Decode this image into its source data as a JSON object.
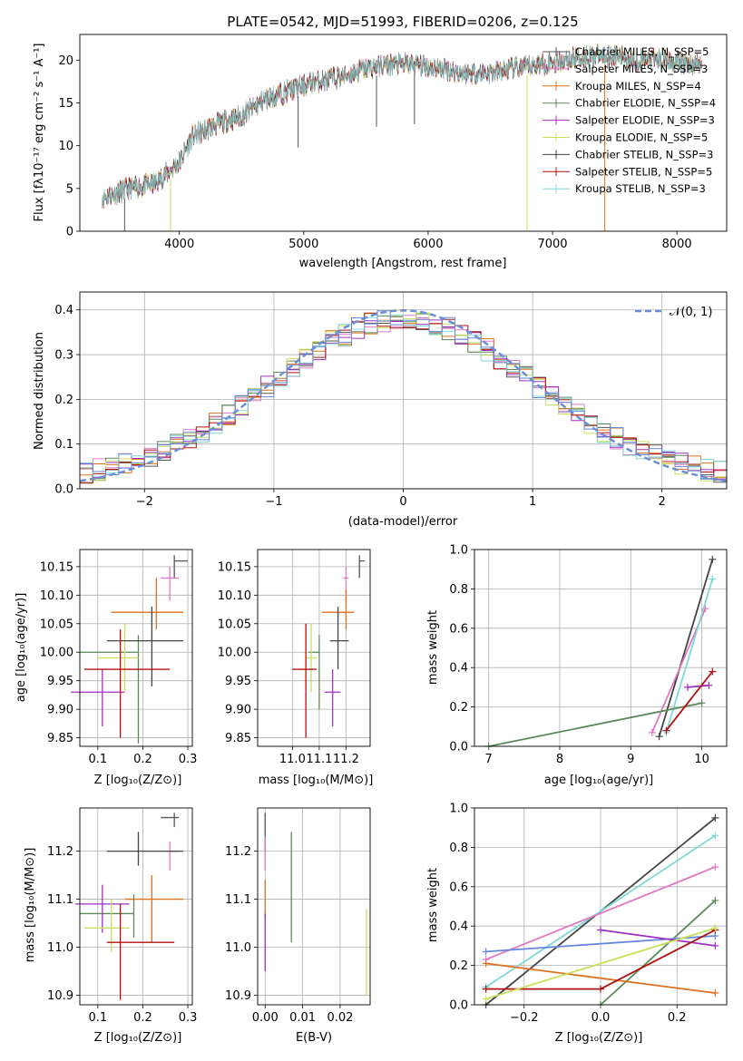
{
  "spectrum": {
    "title": "PLATE=0542, MJD=51993, FIBERID=0206, z=0.125",
    "xlabel": "wavelength [Angstrom, rest frame]",
    "ylabel": "Flux [fλ10⁻¹⁷ erg cm⁻² s⁻¹ A⁻¹]",
    "xticks": [
      "4000",
      "5000",
      "6000",
      "7000",
      "8000"
    ],
    "yticks": [
      "0",
      "5",
      "10",
      "15",
      "20"
    ],
    "legend": [
      "Chabrier MILES, N_SSP=5",
      "Salpeter MILES, N_SSP=3",
      "Kroupa MILES, N_SSP=4",
      "Chabrier ELODIE, N_SSP=4",
      "Salpeter ELODIE, N_SSP=3",
      "Kroupa ELODIE, N_SSP=5",
      "Chabrier STELIB, N_SSP=3",
      "Salpeter STELIB, N_SSP=5",
      "Kroupa STELIB, N_SSP=3"
    ]
  },
  "histogram": {
    "xlabel": "(data-model)/error",
    "ylabel": "Normed distribution",
    "xticks": [
      "−2",
      "−1",
      "0",
      "1",
      "2"
    ],
    "yticks": [
      "0.0",
      "0.1",
      "0.2",
      "0.3",
      "0.4"
    ],
    "legend": "𝒩(0, 1)"
  },
  "scatter": {
    "age_Z": {
      "xlabel": "Z [log₁₀(Z/Z⊙)]",
      "ylabel": "age  [log₁₀(age/yr)]",
      "xticks": [
        "0.1",
        "0.2",
        "0.3"
      ],
      "yticks": [
        "9.85",
        "9.90",
        "9.95",
        "10.00",
        "10.05",
        "10.10",
        "10.15"
      ]
    },
    "age_mass": {
      "xlabel": "mass [log₁₀(M/M⊙)]",
      "xticks": [
        "11.0",
        "11.1",
        "11.2"
      ],
      "yticks": [
        "9.85",
        "9.90",
        "9.95",
        "10.00",
        "10.05",
        "10.10",
        "10.15"
      ]
    },
    "mw_age": {
      "xlabel": "age  [log₁₀(age/yr)]",
      "ylabel": "mass weight",
      "xticks": [
        "7",
        "8",
        "9",
        "10"
      ],
      "yticks": [
        "0.0",
        "0.2",
        "0.4",
        "0.6",
        "0.8",
        "1.0"
      ]
    },
    "mass_Z": {
      "xlabel": "Z [log₁₀(Z/Z⊙)]",
      "ylabel": "mass [log₁₀(M/M⊙)]",
      "xticks": [
        "0.1",
        "0.2",
        "0.3"
      ],
      "yticks": [
        "10.9",
        "11.0",
        "11.1",
        "11.2"
      ]
    },
    "mass_ebv": {
      "xlabel": "E(B-V)",
      "xticks": [
        "0.00",
        "0.01",
        "0.02"
      ],
      "yticks": [
        "10.9",
        "11.0",
        "11.1",
        "11.2"
      ]
    },
    "mw_Z": {
      "xlabel": "Z [log₁₀(Z/Z⊙)]",
      "ylabel": "mass weight",
      "xticks": [
        "−0.2",
        "0.0",
        "0.2"
      ],
      "yticks": [
        "0.0",
        "0.2",
        "0.4",
        "0.6",
        "0.8",
        "1.0"
      ]
    }
  },
  "colors": {
    "Chabrier MILES": "#555555",
    "Salpeter MILES": "#e377c2",
    "Kroupa MILES": "#e07020",
    "Chabrier ELODIE": "#5a8a5a",
    "Salpeter ELODIE": "#a030c0",
    "Kroupa ELODIE": "#c8e05a",
    "Chabrier STELIB": "#444444",
    "Salpeter STELIB": "#b01010",
    "Kroupa STELIB": "#7fd8d8",
    "Extra": "#6688dd",
    "Gaussian": "#6a8fd8"
  },
  "chart_data": [
    {
      "type": "line",
      "title": "PLATE=0542, MJD=51993, FIBERID=0206, z=0.125",
      "xlabel": "wavelength [Angstrom, rest frame]",
      "ylabel": "Flux [fλ10⁻¹⁷ erg cm⁻² s⁻¹ A⁻¹]",
      "xlim": [
        3200,
        8400
      ],
      "ylim": [
        0,
        23
      ],
      "x": [
        3400,
        3600,
        3800,
        4000,
        4100,
        4300,
        4500,
        4700,
        4900,
        5100,
        5300,
        5500,
        5700,
        5900,
        6100,
        6300,
        6500,
        6700,
        6900,
        7100,
        7300,
        7500,
        7700,
        7900,
        8100
      ],
      "y": [
        4.0,
        5.0,
        5.5,
        8.0,
        11.0,
        12.5,
        13.5,
        15.5,
        16.5,
        17.5,
        18.0,
        19.0,
        19.5,
        19.5,
        19.0,
        18.5,
        18.5,
        19.0,
        19.5,
        20.0,
        20.5,
        20.5,
        20.0,
        20.0,
        19.5
      ],
      "legend": "upper right"
    },
    {
      "type": "area",
      "xlabel": "(data-model)/error",
      "ylabel": "Normed distribution",
      "xlim": [
        -2.5,
        2.5
      ],
      "ylim": [
        0,
        0.44
      ],
      "series": [
        {
          "name": "𝒩(0, 1)",
          "function": "normal pdf, mean 0, sigma 1"
        }
      ],
      "grid": true,
      "legend": "upper right"
    },
    {
      "type": "scatter",
      "xlabel": "Z [log₁₀(Z/Z⊙)]",
      "ylabel": "age  [log₁₀(age/yr)]",
      "xlim": [
        0.06,
        0.31
      ],
      "ylim": [
        9.835,
        10.18
      ],
      "x": [
        0.27,
        0.26,
        0.23,
        0.19,
        0.11,
        0.16,
        0.22,
        0.15
      ],
      "y": [
        10.16,
        10.13,
        10.07,
        10.0,
        9.93,
        9.99,
        10.02,
        9.97
      ]
    },
    {
      "type": "scatter",
      "xlabel": "mass [log₁₀(M/M⊙)]",
      "ylabel": "age  [log₁₀(age/yr)]",
      "xlim": [
        10.87,
        11.29
      ],
      "ylim": [
        9.835,
        10.18
      ],
      "x": [
        11.25,
        11.2,
        11.2,
        11.1,
        11.15,
        11.07,
        11.17,
        11.05
      ],
      "y": [
        10.16,
        10.13,
        10.07,
        10.0,
        9.93,
        9.99,
        10.02,
        9.97
      ]
    },
    {
      "type": "line",
      "xlabel": "age  [log₁₀(age/yr)]",
      "ylabel": "mass weight",
      "xlim": [
        6.8,
        10.35
      ],
      "ylim": [
        0,
        1.0
      ],
      "series": [
        {
          "x": [
            9.4,
            10.15
          ],
          "y": [
            0.05,
            0.95
          ]
        },
        {
          "x": [
            9.3,
            10.05
          ],
          "y": [
            0.07,
            0.7
          ]
        },
        {
          "x": [
            9.5,
            10.15
          ],
          "y": [
            0.07,
            0.85
          ]
        },
        {
          "x": [
            7.0,
            10.0
          ],
          "y": [
            0.0,
            0.22
          ]
        },
        {
          "x": [
            9.8,
            10.1
          ],
          "y": [
            0.3,
            0.31
          ]
        },
        {
          "x": [
            9.5,
            10.15
          ],
          "y": [
            0.08,
            0.38
          ]
        }
      ]
    },
    {
      "type": "scatter",
      "xlabel": "Z [log₁₀(Z/Z⊙)]",
      "ylabel": "mass [log₁₀(M/M⊙)]",
      "xlim": [
        0.06,
        0.31
      ],
      "ylim": [
        10.88,
        11.29
      ],
      "x": [
        0.27,
        0.26,
        0.22,
        0.18,
        0.11,
        0.13,
        0.19,
        0.15
      ],
      "y": [
        11.27,
        11.2,
        11.1,
        11.07,
        11.09,
        11.04,
        11.2,
        11.01
      ]
    },
    {
      "type": "scatter",
      "xlabel": "E(B-V)",
      "ylabel": "mass [log₁₀(M/M⊙)]",
      "xlim": [
        -0.002,
        0.028
      ],
      "ylim": [
        10.88,
        11.29
      ],
      "x": [
        0.0,
        0.0,
        0.0,
        0.007,
        0.0,
        0.027
      ],
      "y": [
        11.25,
        11.2,
        11.1,
        11.13,
        11.0,
        10.99
      ]
    },
    {
      "type": "line",
      "xlabel": "Z [log₁₀(Z/Z⊙)]",
      "ylabel": "mass weight",
      "xlim": [
        -0.33,
        0.33
      ],
      "ylim": [
        0,
        1.0
      ],
      "series": [
        {
          "x": [
            -0.3,
            0.3
          ],
          "y": [
            0.0,
            0.95
          ]
        },
        {
          "x": [
            -0.3,
            0.3
          ],
          "y": [
            0.09,
            0.86
          ]
        },
        {
          "x": [
            -0.3,
            0.3
          ],
          "y": [
            0.23,
            0.7
          ]
        },
        {
          "x": [
            0.0,
            0.3
          ],
          "y": [
            0.0,
            0.53
          ]
        },
        {
          "x": [
            -0.3,
            0.3
          ],
          "y": [
            0.27,
            0.35
          ]
        },
        {
          "x": [
            -0.3,
            0.3
          ],
          "y": [
            0.21,
            0.06
          ]
        },
        {
          "x": [
            0.0,
            0.3
          ],
          "y": [
            0.38,
            0.3
          ]
        },
        {
          "x": [
            -0.3,
            0.0,
            0.3
          ],
          "y": [
            0.08,
            0.08,
            0.38
          ]
        },
        {
          "x": [
            -0.3,
            0.3
          ],
          "y": [
            0.03,
            0.39
          ]
        }
      ]
    }
  ]
}
